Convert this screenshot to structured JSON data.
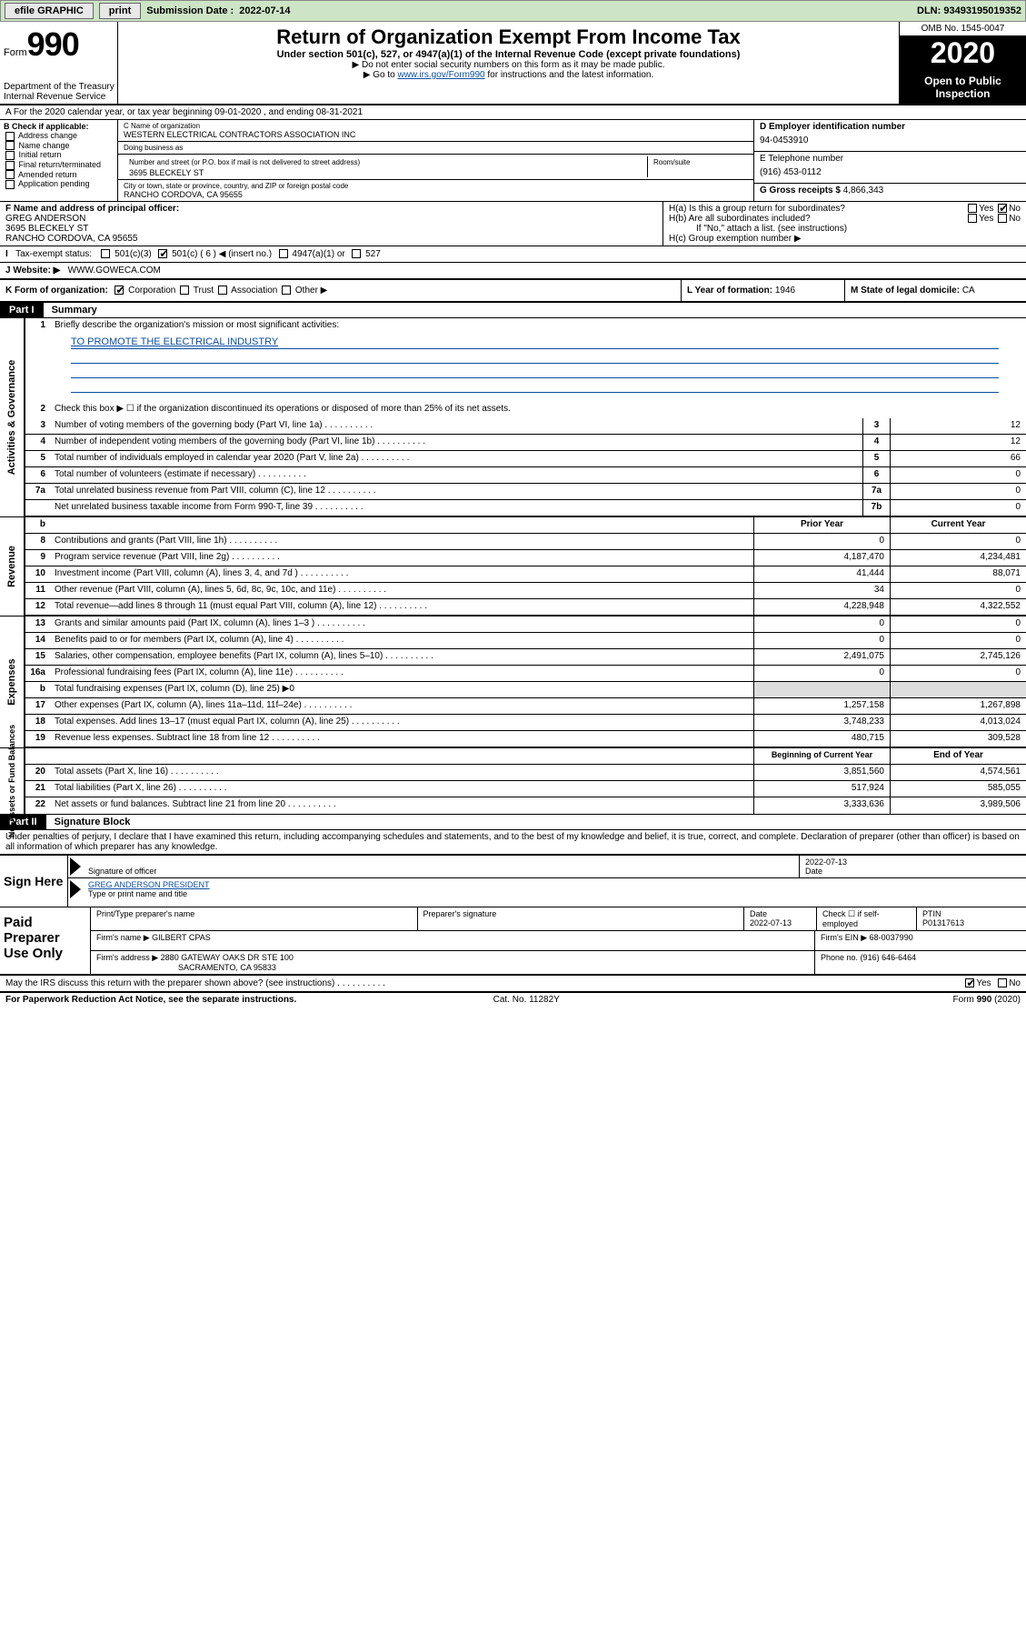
{
  "colors": {
    "topbar_bg": "#cde5c6",
    "link": "#0b4ea2",
    "black": "#000000"
  },
  "topbar": {
    "efile": "efile GRAPHIC",
    "print": "print",
    "sub_label": "Submission Date :",
    "sub_date": "2022-07-14",
    "dln": "DLN: 93493195019352"
  },
  "header": {
    "form_prefix": "Form",
    "form_no": "990",
    "dept": "Department of the Treasury\nInternal Revenue Service",
    "title": "Return of Organization Exempt From Income Tax",
    "subtitle": "Under section 501(c), 527, or 4947(a)(1) of the Internal Revenue Code (except private foundations)",
    "note1": "▶ Do not enter social security numbers on this form as it may be made public.",
    "note2_pre": "▶ Go to ",
    "note2_link": "www.irs.gov/Form990",
    "note2_post": " for instructions and the latest information.",
    "omb": "OMB No. 1545-0047",
    "year": "2020",
    "open": "Open to Public Inspection"
  },
  "row_a": "A For the 2020 calendar year, or tax year beginning 09-01-2020   , and ending 08-31-2021",
  "b_checks": [
    "Address change",
    "Name change",
    "Initial return",
    "Final return/terminated",
    "Amended return",
    "Application pending"
  ],
  "b_label": "B Check if applicable:",
  "c": {
    "name_label": "C Name of organization",
    "name": "WESTERN ELECTRICAL CONTRACTORS ASSOCIATION INC",
    "dba_label": "Doing business as",
    "dba": "",
    "street_label": "Number and street (or P.O. box if mail is not delivered to street address)",
    "room_label": "Room/suite",
    "street": "3695 BLECKELY ST",
    "city_label": "City or town, state or province, country, and ZIP or foreign postal code",
    "city": "RANCHO CORDOVA, CA  95655"
  },
  "d": {
    "label": "D Employer identification number",
    "value": "94-0453910"
  },
  "e": {
    "label": "E Telephone number",
    "value": "(916) 453-0112"
  },
  "g": {
    "label": "G Gross receipts $",
    "value": "4,866,343"
  },
  "f": {
    "label": "F Name and address of principal officer:",
    "name": "GREG ANDERSON",
    "street": "3695 BLECKELY ST",
    "city": "RANCHO CORDOVA, CA  95655"
  },
  "h": {
    "a": "H(a)  Is this a group return for subordinates?",
    "a_no": "No",
    "b": "H(b)  Are all subordinates included?",
    "b_note": "If \"No,\" attach a list. (see instructions)",
    "c": "H(c)  Group exemption number ▶"
  },
  "i": {
    "label": "Tax-exempt status:",
    "opts": [
      "501(c)(3)",
      "501(c) ( 6 ) ◀ (insert no.)",
      "4947(a)(1) or",
      "527"
    ],
    "checked_idx": 1
  },
  "j": {
    "label": "J   Website: ▶",
    "value": "WWW.GOWECA.COM"
  },
  "k": {
    "label": "K Form of organization:",
    "opts": [
      "Corporation",
      "Trust",
      "Association",
      "Other ▶"
    ],
    "checked_idx": 0
  },
  "l": {
    "label": "L Year of formation:",
    "value": "1946"
  },
  "m": {
    "label": "M State of legal domicile:",
    "value": "CA"
  },
  "part1": {
    "tag": "Part I",
    "title": "Summary"
  },
  "summary": {
    "line1_label": "Briefly describe the organization's mission or most significant activities:",
    "line1_value": "TO PROMOTE THE ELECTRICAL INDUSTRY",
    "line2": "Check this box ▶ ☐  if the organization discontinued its operations or disposed of more than 25% of its net assets.",
    "gov_rows": [
      {
        "n": "3",
        "d": "Number of voting members of the governing body (Part VI, line 1a)",
        "box": "3",
        "v": "12"
      },
      {
        "n": "4",
        "d": "Number of independent voting members of the governing body (Part VI, line 1b)",
        "box": "4",
        "v": "12"
      },
      {
        "n": "5",
        "d": "Total number of individuals employed in calendar year 2020 (Part V, line 2a)",
        "box": "5",
        "v": "66"
      },
      {
        "n": "6",
        "d": "Total number of volunteers (estimate if necessary)",
        "box": "6",
        "v": "0"
      },
      {
        "n": "7a",
        "d": "Total unrelated business revenue from Part VIII, column (C), line 12",
        "box": "7a",
        "v": "0"
      },
      {
        "n": "",
        "d": "Net unrelated business taxable income from Form 990-T, line 39",
        "box": "7b",
        "v": "0"
      }
    ],
    "hdr_b": "b",
    "hdr_prior": "Prior Year",
    "hdr_current": "Current Year",
    "rev_rows": [
      {
        "n": "8",
        "d": "Contributions and grants (Part VIII, line 1h)",
        "p": "0",
        "c": "0"
      },
      {
        "n": "9",
        "d": "Program service revenue (Part VIII, line 2g)",
        "p": "4,187,470",
        "c": "4,234,481"
      },
      {
        "n": "10",
        "d": "Investment income (Part VIII, column (A), lines 3, 4, and 7d )",
        "p": "41,444",
        "c": "88,071"
      },
      {
        "n": "11",
        "d": "Other revenue (Part VIII, column (A), lines 5, 6d, 8c, 9c, 10c, and 11e)",
        "p": "34",
        "c": "0"
      },
      {
        "n": "12",
        "d": "Total revenue—add lines 8 through 11 (must equal Part VIII, column (A), line 12)",
        "p": "4,228,948",
        "c": "4,322,552"
      }
    ],
    "exp_rows": [
      {
        "n": "13",
        "d": "Grants and similar amounts paid (Part IX, column (A), lines 1–3 )",
        "p": "0",
        "c": "0"
      },
      {
        "n": "14",
        "d": "Benefits paid to or for members (Part IX, column (A), line 4)",
        "p": "0",
        "c": "0"
      },
      {
        "n": "15",
        "d": "Salaries, other compensation, employee benefits (Part IX, column (A), lines 5–10)",
        "p": "2,491,075",
        "c": "2,745,126"
      },
      {
        "n": "16a",
        "d": "Professional fundraising fees (Part IX, column (A), line 11e)",
        "p": "0",
        "c": "0"
      },
      {
        "n": "b",
        "d": "Total fundraising expenses (Part IX, column (D), line 25) ▶0",
        "p": "",
        "c": "",
        "shade": true
      },
      {
        "n": "17",
        "d": "Other expenses (Part IX, column (A), lines 11a–11d, 11f–24e)",
        "p": "1,257,158",
        "c": "1,267,898"
      },
      {
        "n": "18",
        "d": "Total expenses. Add lines 13–17 (must equal Part IX, column (A), line 25)",
        "p": "3,748,233",
        "c": "4,013,024"
      },
      {
        "n": "19",
        "d": "Revenue less expenses. Subtract line 18 from line 12",
        "p": "480,715",
        "c": "309,528"
      }
    ],
    "hdr_beg": "Beginning of Current Year",
    "hdr_end": "End of Year",
    "net_rows": [
      {
        "n": "20",
        "d": "Total assets (Part X, line 16)",
        "p": "3,851,560",
        "c": "4,574,561"
      },
      {
        "n": "21",
        "d": "Total liabilities (Part X, line 26)",
        "p": "517,924",
        "c": "585,055"
      },
      {
        "n": "22",
        "d": "Net assets or fund balances. Subtract line 21 from line 20",
        "p": "3,333,636",
        "c": "3,989,506"
      }
    ]
  },
  "side_labels": {
    "gov": "Activities & Governance",
    "rev": "Revenue",
    "exp": "Expenses",
    "net": "Net Assets or Fund Balances"
  },
  "part2": {
    "tag": "Part II",
    "title": "Signature Block"
  },
  "penalties": "Under penalties of perjury, I declare that I have examined this return, including accompanying schedules and statements, and to the best of my knowledge and belief, it is true, correct, and complete. Declaration of preparer (other than officer) is based on all information of which preparer has any knowledge.",
  "sign": {
    "here": "Sign Here",
    "sig_label": "Signature of officer",
    "date_label": "Date",
    "date": "2022-07-13",
    "name": "GREG ANDERSON PRESIDENT",
    "name_label": "Type or print name and title"
  },
  "prep": {
    "label": "Paid Preparer Use Only",
    "h1": "Print/Type preparer's name",
    "h2": "Preparer's signature",
    "h3_label": "Date",
    "h3": "2022-07-13",
    "h4": "Check ☐ if self-employed",
    "h5_label": "PTIN",
    "h5": "P01317613",
    "firm_name_label": "Firm's name    ▶",
    "firm_name": "GILBERT CPAS",
    "firm_ein_label": "Firm's EIN ▶",
    "firm_ein": "68-0037990",
    "firm_addr_label": "Firm's address ▶",
    "firm_addr1": "2880 GATEWAY OAKS DR STE 100",
    "firm_addr2": "SACRAMENTO, CA  95833",
    "phone_label": "Phone no.",
    "phone": "(916) 646-6464"
  },
  "discuss": "May the IRS discuss this return with the preparer shown above? (see instructions)",
  "discuss_yes": "Yes",
  "discuss_no": "No",
  "footer": {
    "left": "For Paperwork Reduction Act Notice, see the separate instructions.",
    "mid": "Cat. No. 11282Y",
    "right": "Form 990 (2020)"
  }
}
